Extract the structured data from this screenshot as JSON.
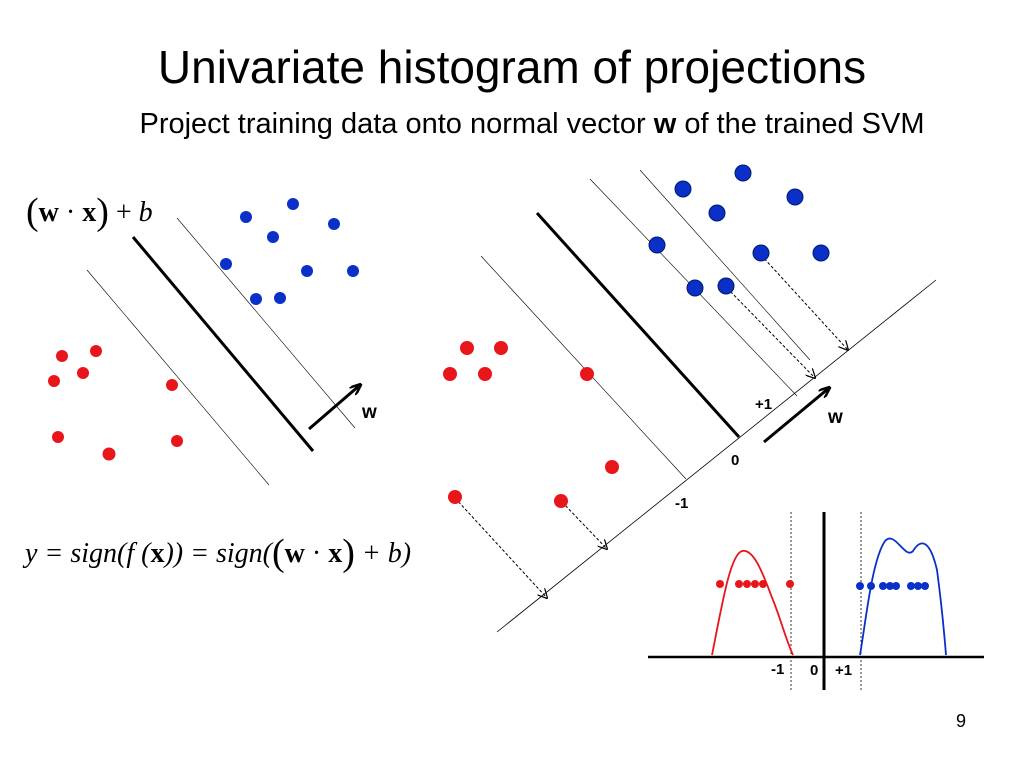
{
  "title": "Univariate histogram of projections",
  "subtitle": {
    "prefix": "Project training data onto normal vector ",
    "bold": "w",
    "suffix": " of the trained SVM"
  },
  "equation_1": {
    "open": "(",
    "w": "w",
    "dot": "·",
    "x": "x",
    "close": ")",
    "plus": "+",
    "b": "b"
  },
  "equation_2": {
    "lhs": "y = sign(f (",
    "x1": "x",
    "mid": ")) = sign(",
    "open": "(",
    "w": "w",
    "dot": "·",
    "x2": "x",
    "close": ")",
    "tail": "+ b)"
  },
  "left_diagram": {
    "w_label": "w"
  },
  "right_diagram": {
    "w_label": "w",
    "axis_labels": {
      "plus_one": "+1",
      "zero": "0",
      "minus_one": "-1"
    }
  },
  "histogram": {
    "tick_labels": {
      "minus_one": "-1",
      "zero": "0",
      "plus_one": "+1"
    }
  },
  "colors": {
    "red_class": "#e8161b",
    "blue_class": "#0a30c8",
    "line": "#000000"
  },
  "page_number": "9"
}
